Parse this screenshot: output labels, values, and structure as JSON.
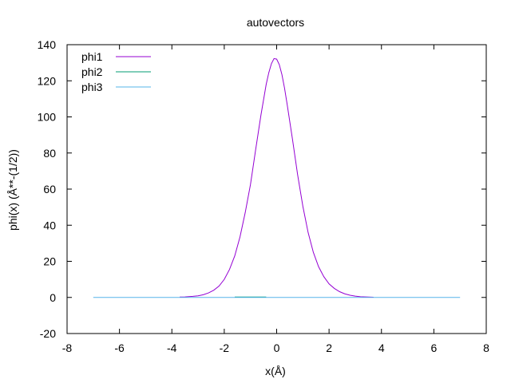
{
  "chart_data": {
    "type": "line",
    "title": "autovectors",
    "xlabel": "x(Å)",
    "ylabel": "phi(x) (Å**-(1/2))",
    "xlim": [
      -8,
      8
    ],
    "ylim": [
      -20,
      140
    ],
    "xticks": [
      -8,
      -6,
      -4,
      -2,
      0,
      2,
      4,
      6,
      8
    ],
    "yticks": [
      -20,
      0,
      20,
      40,
      60,
      80,
      100,
      120,
      140
    ],
    "grid": false,
    "legend_position": "top-left",
    "series": [
      {
        "name": "phi1",
        "color": "#9400d3",
        "x": [
          -3.7,
          -3.5,
          -3.2,
          -3.0,
          -2.8,
          -2.6,
          -2.4,
          -2.2,
          -2.0,
          -1.8,
          -1.6,
          -1.4,
          -1.2,
          -1.0,
          -0.8,
          -0.6,
          -0.4,
          -0.3,
          -0.2,
          -0.1,
          0.0,
          0.1,
          0.2,
          0.3,
          0.4,
          0.6,
          0.8,
          1.0,
          1.2,
          1.4,
          1.6,
          1.8,
          2.0,
          2.2,
          2.4,
          2.6,
          2.8,
          3.0,
          3.2,
          3.5,
          3.7
        ],
        "y": [
          0.2,
          0.3,
          0.6,
          0.9,
          1.5,
          2.5,
          4.0,
          6.3,
          10.0,
          15.5,
          23.0,
          33.5,
          47.0,
          62.5,
          82.0,
          101.0,
          118.0,
          124.5,
          129.5,
          132.3,
          132.0,
          129.0,
          123.5,
          116.0,
          107.0,
          88.0,
          68.0,
          50.5,
          36.0,
          25.0,
          17.0,
          11.5,
          7.5,
          5.0,
          3.2,
          2.0,
          1.2,
          0.7,
          0.4,
          0.2,
          0.1
        ]
      },
      {
        "name": "phi2",
        "color": "#009e73",
        "x": [
          -1.6,
          -0.4
        ],
        "y": [
          0.2,
          0.2
        ]
      },
      {
        "name": "phi3",
        "color": "#56b4e9",
        "x": [
          -7.0,
          7.0
        ],
        "y": [
          0.0,
          0.0
        ]
      }
    ]
  }
}
